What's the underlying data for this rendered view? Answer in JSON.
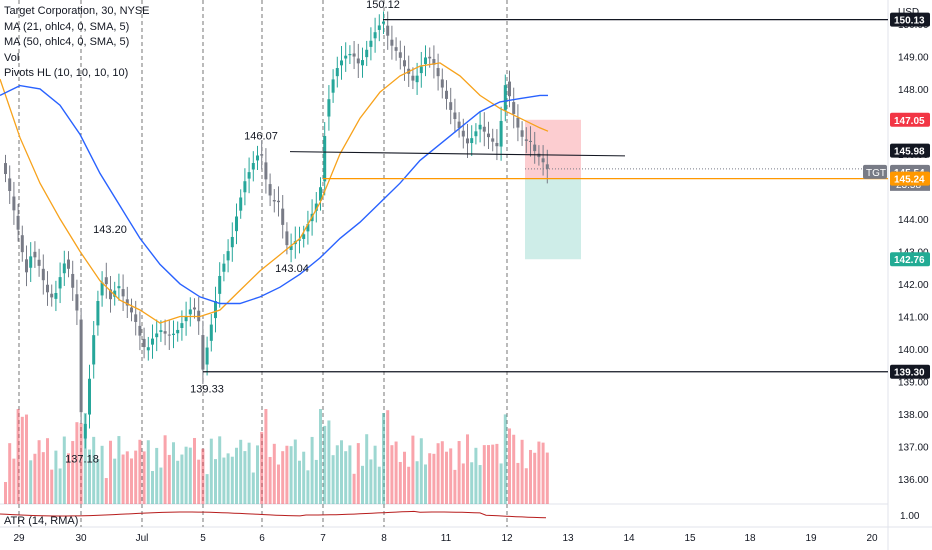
{
  "legend": {
    "title": "Target Corporation, 30, NYSE",
    "ma21": "MA (21, ohlc4, 0, SMA, 5)",
    "ma50": "MA (50, ohlc4, 0, SMA, 5)",
    "vol": "Vol",
    "pivots": "Pivots HL (10, 10, 10, 10)"
  },
  "atr_label": "ATR (14, RMA)",
  "currency": "USD",
  "colors": {
    "up": "#26a69a",
    "down": "#787b86",
    "ma21": "#f7a21b",
    "ma50": "#2962ff",
    "atr": "#b71c1c",
    "stop": "#f23645",
    "target": "#22ab94",
    "entry_line": "#ff9800"
  },
  "chart_data": {
    "type": "candlestick",
    "symbol": "TGT",
    "y_axis": {
      "min": 135.6,
      "max": 150.55,
      "ticks": [
        136,
        137,
        138,
        139,
        140,
        141,
        142,
        143,
        144,
        145,
        146,
        147,
        148,
        149,
        150
      ],
      "tick_labels": [
        "136.00",
        "137.00",
        "138.00",
        "139.00",
        "140.00",
        "141.00",
        "142.00",
        "143.00",
        "144.00",
        "145.00",
        "146.00",
        "147.00",
        "148.00",
        "149.00",
        "150.00"
      ]
    },
    "x_axis": {
      "labels": [
        "29",
        "30",
        "Jul",
        "5",
        "6",
        "7",
        "8",
        "11",
        "12",
        "13",
        "14",
        "15",
        "18",
        "19",
        "20"
      ],
      "session_dividers": [
        "29",
        "30",
        "Jul",
        "5",
        "6",
        "7",
        "8",
        "12"
      ]
    },
    "price_path": [
      [
        0,
        146.0
      ],
      [
        8,
        145.1
      ],
      [
        20,
        143.4
      ],
      [
        26,
        142.3
      ],
      [
        32,
        143.0
      ],
      [
        40,
        142.5
      ],
      [
        46,
        141.8
      ],
      [
        54,
        141.5
      ],
      [
        60,
        142.2
      ],
      [
        66,
        142.8
      ],
      [
        72,
        142.0
      ],
      [
        78,
        141.0
      ],
      [
        82,
        137.2
      ],
      [
        86,
        137.8
      ],
      [
        92,
        140.0
      ],
      [
        98,
        141.5
      ],
      [
        104,
        142.3
      ],
      [
        110,
        141.5
      ],
      [
        118,
        142.0
      ],
      [
        126,
        141.4
      ],
      [
        134,
        141.0
      ],
      [
        140,
        140.4
      ],
      [
        146,
        139.9
      ],
      [
        152,
        140.3
      ],
      [
        160,
        140.6
      ],
      [
        168,
        140.4
      ],
      [
        176,
        140.5
      ],
      [
        184,
        140.9
      ],
      [
        192,
        141.3
      ],
      [
        198,
        141.1
      ],
      [
        203,
        139.33
      ],
      [
        208,
        140.2
      ],
      [
        214,
        141.2
      ],
      [
        220,
        142.3
      ],
      [
        226,
        142.8
      ],
      [
        232,
        143.4
      ],
      [
        238,
        144.3
      ],
      [
        244,
        145.1
      ],
      [
        250,
        145.5
      ],
      [
        256,
        145.9
      ],
      [
        261,
        146.07
      ],
      [
        266,
        145.2
      ],
      [
        272,
        144.5
      ],
      [
        278,
        144.6
      ],
      [
        284,
        143.6
      ],
      [
        288,
        143.04
      ],
      [
        294,
        143.3
      ],
      [
        302,
        143.4
      ],
      [
        310,
        144.0
      ],
      [
        318,
        144.6
      ],
      [
        322,
        145.2
      ],
      [
        326,
        147.2
      ],
      [
        332,
        148.2
      ],
      [
        338,
        148.7
      ],
      [
        344,
        149.0
      ],
      [
        352,
        149.1
      ],
      [
        360,
        148.7
      ],
      [
        368,
        149.3
      ],
      [
        376,
        149.8
      ],
      [
        383,
        150.12
      ],
      [
        390,
        149.4
      ],
      [
        398,
        149.1
      ],
      [
        406,
        148.6
      ],
      [
        414,
        148.2
      ],
      [
        420,
        148.6
      ],
      [
        426,
        149.0
      ],
      [
        432,
        148.9
      ],
      [
        438,
        148.4
      ],
      [
        444,
        147.9
      ],
      [
        450,
        147.4
      ],
      [
        456,
        147.0
      ],
      [
        462,
        146.6
      ],
      [
        468,
        146.3
      ],
      [
        474,
        146.6
      ],
      [
        480,
        146.9
      ],
      [
        486,
        146.6
      ],
      [
        492,
        146.4
      ],
      [
        498,
        146.2
      ],
      [
        506,
        148.3
      ],
      [
        512,
        147.4
      ],
      [
        518,
        146.8
      ],
      [
        524,
        146.4
      ],
      [
        530,
        146.4
      ],
      [
        536,
        146.0
      ],
      [
        542,
        145.8
      ],
      [
        547,
        145.54
      ]
    ],
    "ma21": [
      [
        0,
        148.3
      ],
      [
        20,
        146.5
      ],
      [
        40,
        145.1
      ],
      [
        60,
        144.0
      ],
      [
        80,
        143.0
      ],
      [
        100,
        142.1
      ],
      [
        120,
        141.5
      ],
      [
        140,
        141.2
      ],
      [
        160,
        140.8
      ],
      [
        180,
        141.0
      ],
      [
        200,
        141.0
      ],
      [
        220,
        141.2
      ],
      [
        240,
        141.8
      ],
      [
        260,
        142.4
      ],
      [
        280,
        142.9
      ],
      [
        300,
        143.4
      ],
      [
        320,
        144.5
      ],
      [
        340,
        146.0
      ],
      [
        360,
        147.1
      ],
      [
        380,
        147.9
      ],
      [
        400,
        148.4
      ],
      [
        420,
        148.7
      ],
      [
        440,
        148.8
      ],
      [
        460,
        148.4
      ],
      [
        480,
        147.8
      ],
      [
        500,
        147.4
      ],
      [
        520,
        147.1
      ],
      [
        540,
        146.8
      ],
      [
        548,
        146.7
      ]
    ],
    "ma50": [
      [
        0,
        147.8
      ],
      [
        20,
        148.1
      ],
      [
        40,
        148.0
      ],
      [
        60,
        147.5
      ],
      [
        80,
        146.6
      ],
      [
        100,
        145.4
      ],
      [
        120,
        144.4
      ],
      [
        140,
        143.4
      ],
      [
        160,
        142.6
      ],
      [
        180,
        142.0
      ],
      [
        200,
        141.6
      ],
      [
        220,
        141.4
      ],
      [
        240,
        141.4
      ],
      [
        260,
        141.6
      ],
      [
        280,
        141.9
      ],
      [
        300,
        142.3
      ],
      [
        320,
        142.8
      ],
      [
        340,
        143.4
      ],
      [
        360,
        143.9
      ],
      [
        380,
        144.5
      ],
      [
        400,
        145.1
      ],
      [
        420,
        145.8
      ],
      [
        440,
        146.3
      ],
      [
        460,
        146.8
      ],
      [
        480,
        147.3
      ],
      [
        500,
        147.6
      ],
      [
        520,
        147.7
      ],
      [
        540,
        147.8
      ],
      [
        548,
        147.8
      ]
    ],
    "horizontal_lines": [
      {
        "value": 150.13,
        "label": "150.13"
      },
      {
        "value": 139.3,
        "label": "139.30"
      }
    ],
    "neckline": {
      "start": [
        290,
        146.07
      ],
      "end": [
        625,
        145.94
      ]
    },
    "pivot_labels": [
      {
        "x": 383,
        "value": 150.12,
        "text": "150.12"
      },
      {
        "x": 261,
        "value": 146.07,
        "text": "146.07"
      },
      {
        "x": 110,
        "value": 143.2,
        "text": "143.20"
      },
      {
        "x": 292,
        "value": 143.04,
        "text": "143.04"
      },
      {
        "x": 207,
        "value": 139.33,
        "text": "139.33"
      },
      {
        "x": 82,
        "value": 137.18,
        "text": "137.18"
      }
    ],
    "position": {
      "entry": 145.24,
      "stop": 147.05,
      "target": 142.76,
      "current": 145.54,
      "x_start": 525,
      "x_end": 581
    },
    "price_labels": [
      {
        "value": 150.13,
        "text": "150.13",
        "kind": "line"
      },
      {
        "value": 147.05,
        "text": "147.05",
        "kind": "stop"
      },
      {
        "value": 145.98,
        "text": "145.98",
        "kind": "line"
      },
      {
        "value": 145.54,
        "text": "145.54",
        "kind": "current",
        "symbol": "TGT",
        "countdown": "23:58"
      },
      {
        "value": 145.24,
        "text": "145.24",
        "kind": "entry"
      },
      {
        "value": 142.76,
        "text": "142.76",
        "kind": "target"
      },
      {
        "value": 139.3,
        "text": "139.30",
        "kind": "line"
      }
    ],
    "atr_value_label": "1.00",
    "grid": false,
    "legend_position": "top-left"
  }
}
